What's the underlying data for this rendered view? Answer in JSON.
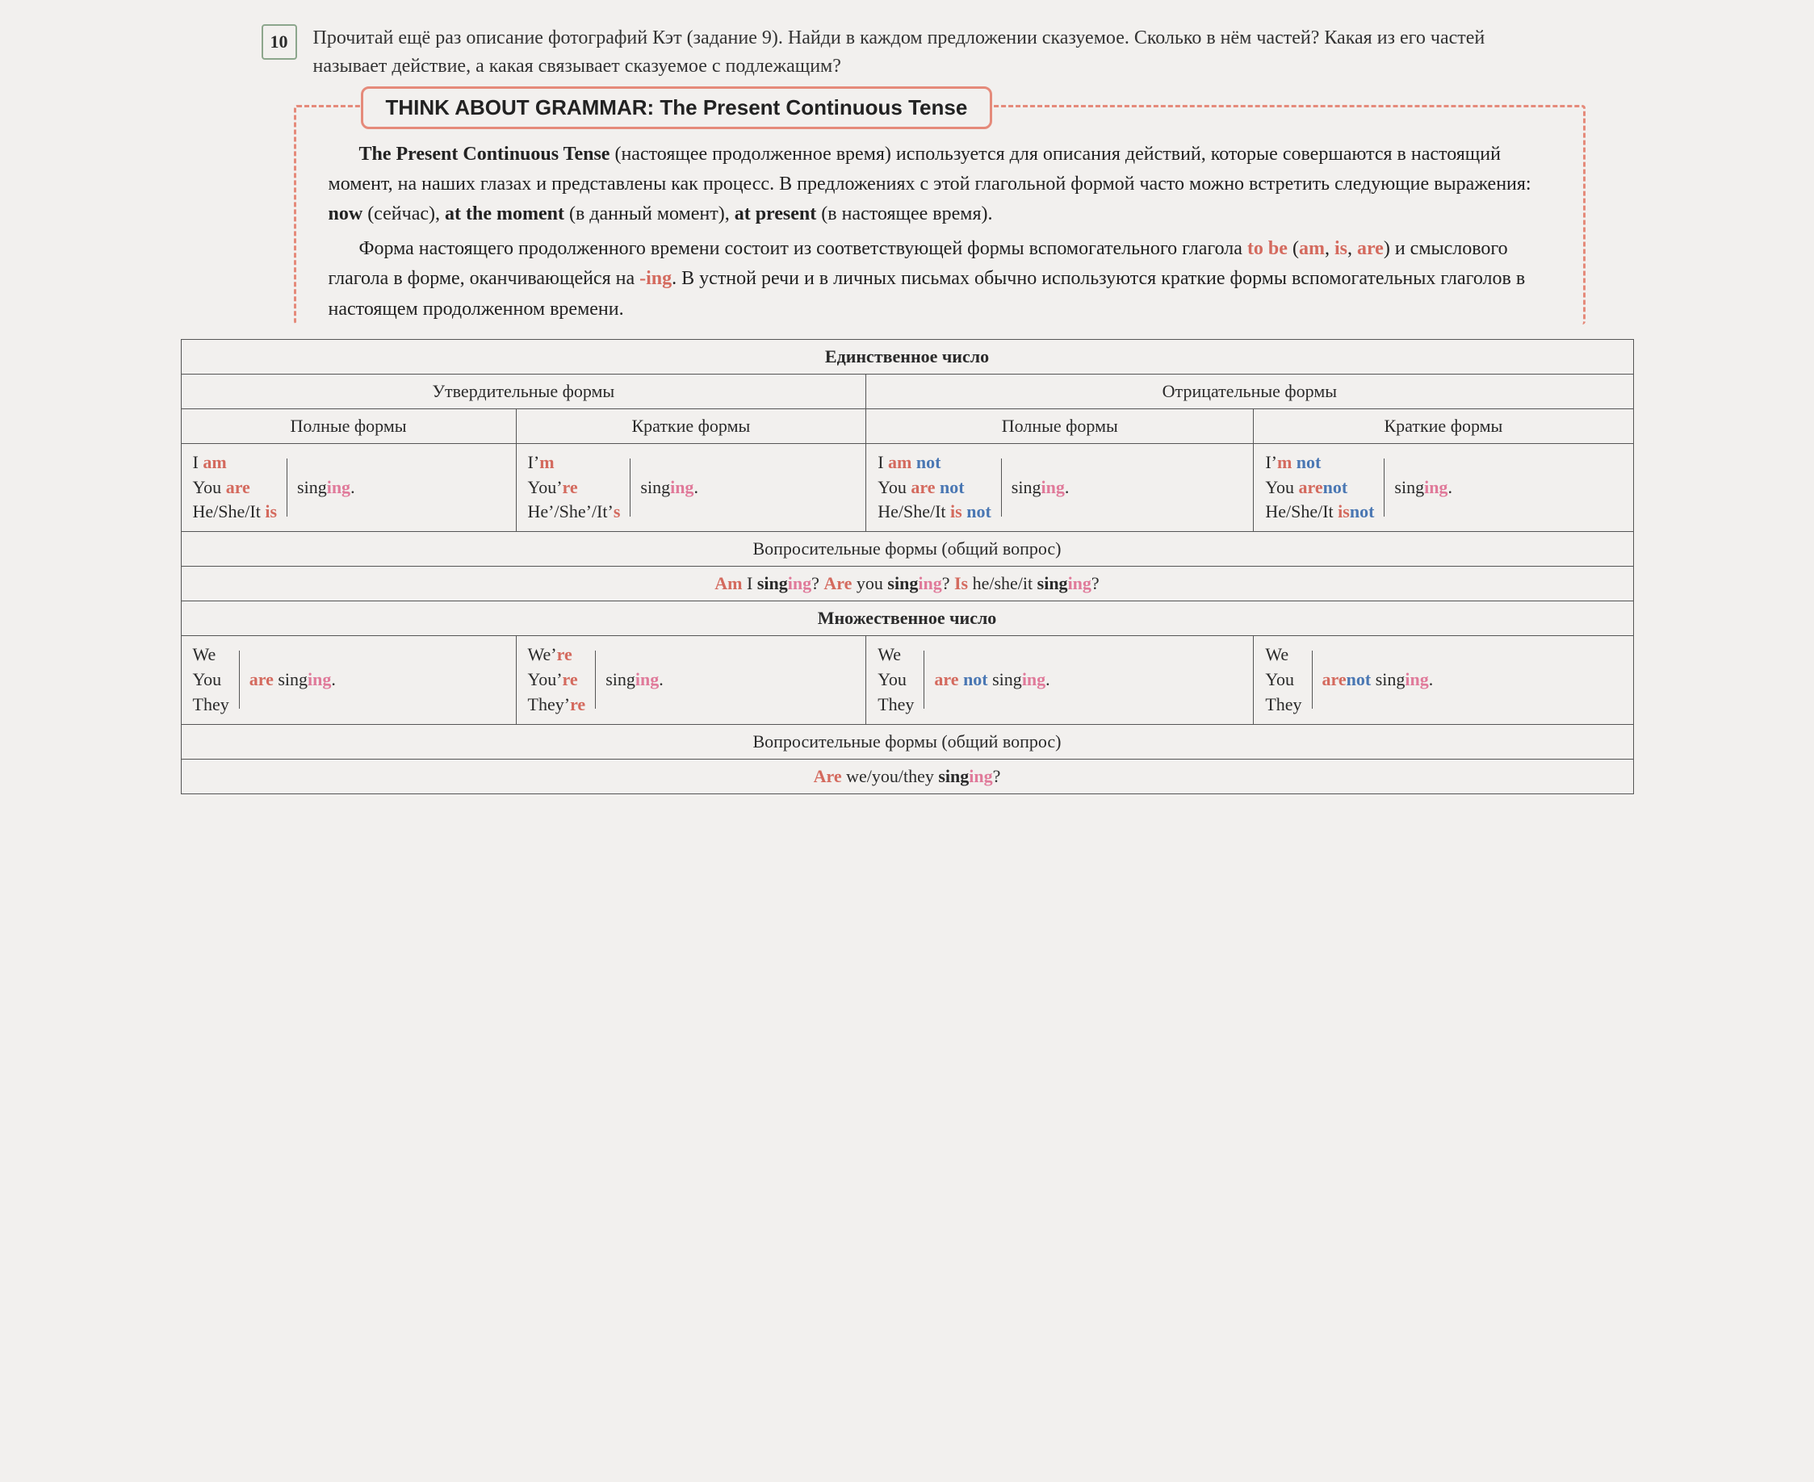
{
  "task": {
    "number": "10",
    "text": "Прочитай ещё раз описание фотографий Кэт (задание 9). Найди в каждом предложении сказуемое. Сколько в нём частей? Какая из его частей называет действие, а какая связывает сказуемое с подлежащим?"
  },
  "grammar": {
    "title": "THINK ABOUT GRAMMAR: The Present Continuous Tense",
    "para1_lead": "The Present Continuous Tense",
    "para1_rest": " (настоящее продолженное время) используется для описания действий, которые совершаются в настоящий момент, на наших глазах и представлены как процесс. В предложениях с этой глагольной формой часто можно встретить следующие выражения: ",
    "now": "now",
    "now_tr": " (сейчас), ",
    "atmoment": "at the moment",
    "atmoment_tr": " (в данный момент), ",
    "atpresent": "at present",
    "atpresent_tr": " (в настоящее время).",
    "para2_a": "Форма настоящего продолженного времени состоит из соответствующей формы вспомогательного глагола ",
    "tobe": "to be",
    "para2_b": " (",
    "am": "am",
    "comma1": ", ",
    "is": "is",
    "comma2": ", ",
    "are": "are",
    "para2_c": ") и смыслового глагола в форме, оканчивающейся на ",
    "ing": "-ing",
    "para2_d": ". В устной речи и в личных письмах обычно используются краткие формы вспомогательных глаголов в настоящем продолженном времени."
  },
  "table": {
    "h_sing": "Единственное число",
    "h_aff": "Утвердительные формы",
    "h_neg": "Отрицательные формы",
    "h_full": "Полные формы",
    "h_short": "Краткие формы",
    "h_int_sing": "Вопросительные формы (общий вопрос)",
    "h_plur": "Множественное число",
    "h_int_plur": "Вопросительные формы (общий вопрос)",
    "pron": {
      "i": "I ",
      "you": "You ",
      "he": "He/She/It ",
      "im": "I’",
      "youre": "You’",
      "hes": "He’/She’/It’",
      "we": "We",
      "they": "They",
      "were": "We’",
      "theyre": "They’"
    },
    "aux": {
      "am": "am",
      "are": "are",
      "is": "is",
      "m": "m",
      "re": "re",
      "s": "s",
      "amnot": "am not",
      "arenot": "are not",
      "isnot": "is not",
      "mnot": "m not",
      "arent": "aren’t",
      "isnt": "isn’t",
      "not": "not"
    },
    "verb": {
      "sing": "sing",
      "ing": "ing",
      "dot": "."
    },
    "q_sing": {
      "am": "Am",
      "i": " I ",
      "q1": "?   ",
      "are": "Are",
      "you": " you ",
      "q2": "?   ",
      "is": "Is",
      "he": " he/she/it ",
      "q3": "?"
    },
    "q_plur": {
      "are": "Are",
      "we": " we/you/they ",
      "q": "?"
    }
  },
  "colors": {
    "border_dash": "#e58a7a",
    "red": "#d46a5e",
    "blue": "#4a77b3",
    "pink": "#e07a9a",
    "bg": "#f2f0ee",
    "text": "#2a2a2a",
    "table_border": "#555555"
  },
  "typography": {
    "body_font": "Georgia serif",
    "title_font": "Arial sans-serif",
    "body_size_pt": 18,
    "title_size_pt": 20
  }
}
